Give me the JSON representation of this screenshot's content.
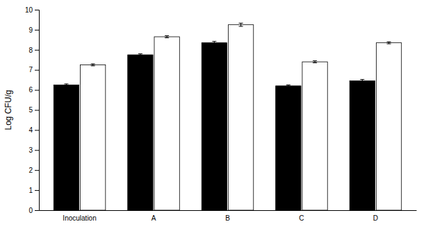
{
  "chart_data": {
    "type": "bar",
    "ylabel": "Log CFU/g",
    "categories": [
      "Inoculation",
      "A",
      "B",
      "C",
      "D"
    ],
    "series": [
      {
        "color": "#000000",
        "values": [
          6.25,
          7.75,
          8.35,
          6.2,
          6.45
        ],
        "errors": [
          0.05,
          0.05,
          0.07,
          0.05,
          0.07
        ]
      },
      {
        "color": "#ffffff",
        "values": [
          7.25,
          8.65,
          9.25,
          7.4,
          8.35
        ],
        "errors": [
          0.05,
          0.05,
          0.08,
          0.05,
          0.05
        ]
      }
    ],
    "ylim": [
      0,
      10
    ],
    "yticks": [
      0,
      1,
      2,
      3,
      4,
      5,
      6,
      7,
      8,
      9,
      10
    ]
  }
}
